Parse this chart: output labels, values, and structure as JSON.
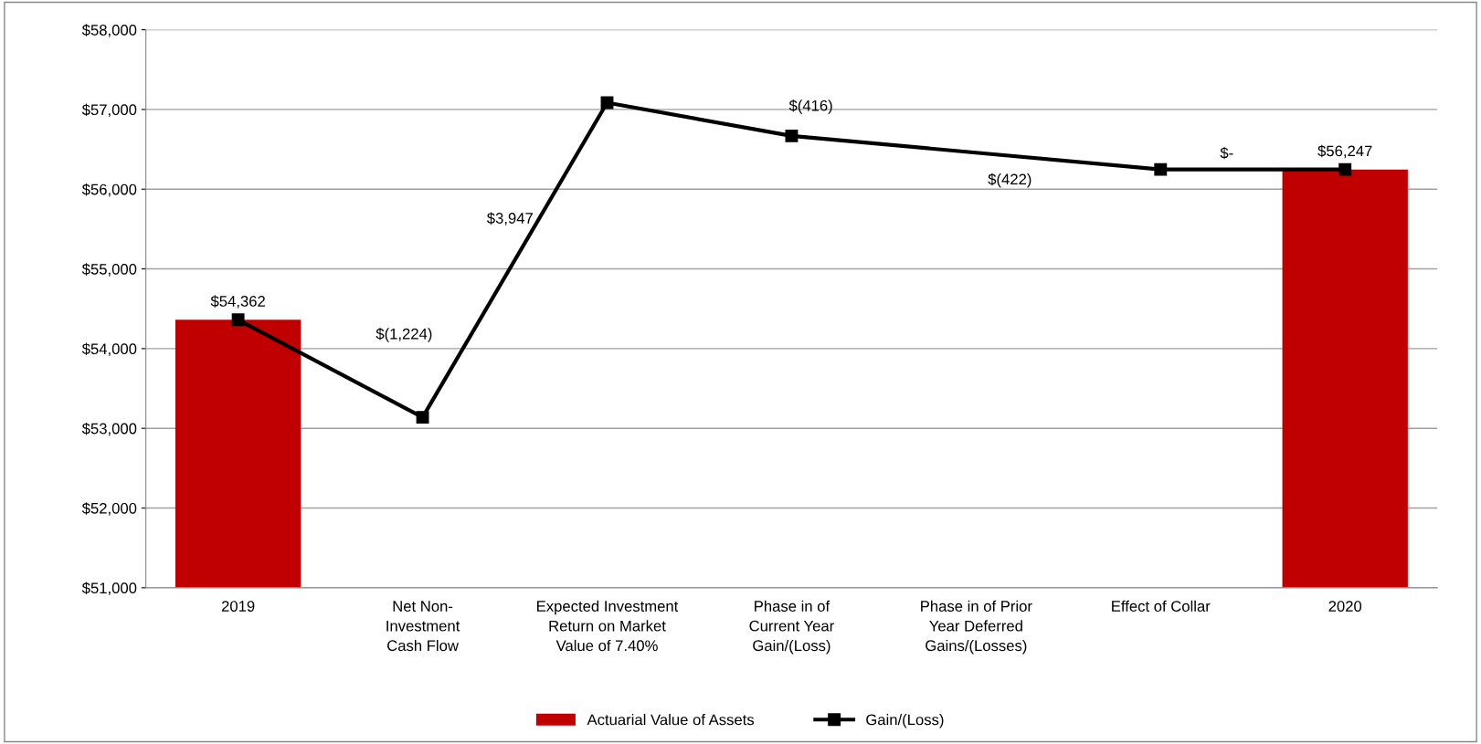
{
  "chart_data": {
    "type": "bar",
    "categories": [
      "2019",
      "Net Non-\nInvestment\nCash Flow",
      "Expected Investment\nReturn on Market\nValue of 7.40%",
      "Phase in of\nCurrent Year\nGain/(Loss)",
      "Phase in of Prior\nYear Deferred\nGains/(Losses)",
      "Effect of Collar",
      "2020"
    ],
    "series": [
      {
        "name": "Actuarial Value of Assets",
        "color": "#c00000",
        "values": [
          54362,
          null,
          null,
          null,
          null,
          null,
          56247
        ],
        "value_labels": [
          "$54,362",
          null,
          null,
          null,
          null,
          null,
          "$56,247"
        ]
      },
      {
        "name": "Gain/(Loss)",
        "type": "line",
        "color": "#000000",
        "marker": "square",
        "values": [
          54362,
          53138,
          57085,
          56669,
          null,
          56247,
          56247
        ]
      }
    ],
    "annotations": [
      "$(1,224)",
      "$3,947",
      "$(416)",
      "$(422)",
      "$-"
    ],
    "ylim": [
      51000,
      58000
    ],
    "yticks": [
      {
        "value": 51000,
        "label": "$51,000"
      },
      {
        "value": 52000,
        "label": "$52,000"
      },
      {
        "value": 53000,
        "label": "$53,000"
      },
      {
        "value": 54000,
        "label": "$54,000"
      },
      {
        "value": 55000,
        "label": "$55,000"
      },
      {
        "value": 56000,
        "label": "$56,000"
      },
      {
        "value": 57000,
        "label": "$57,000"
      },
      {
        "value": 58000,
        "label": "$58,000"
      }
    ],
    "grid": "y",
    "legend": "bottom"
  }
}
